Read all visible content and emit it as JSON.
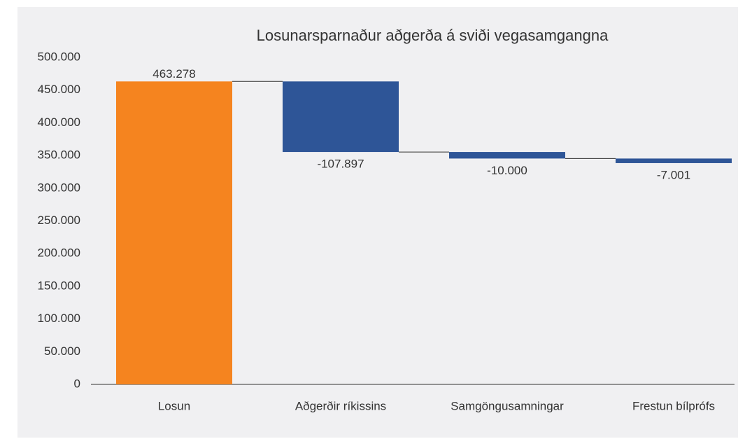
{
  "chart_data": {
    "type": "waterfall",
    "title": "Losunarsparnaður aðgerða á sviði vegasamgangna",
    "categories": [
      "Losun",
      "Aðgerðir ríkissins",
      "Samgöngusamningar",
      "Frestun bílprófs"
    ],
    "values": [
      463278,
      -107897,
      -10000,
      -7001
    ],
    "value_labels": [
      "463.278",
      "-107.897",
      "-10.000",
      "-7.001"
    ],
    "colors": {
      "total": "#f5841f",
      "decrease": "#2e5597"
    },
    "ylim": [
      0,
      500000
    ],
    "yticks": [
      0,
      {
        "value": 50000,
        "label": "50.000"
      },
      {
        "value": 100000,
        "label": "100.000"
      },
      {
        "value": 150000,
        "label": "150.000"
      },
      {
        "value": 200000,
        "label": "200.000"
      },
      {
        "value": 250000,
        "label": "250.000"
      },
      {
        "value": 300000,
        "label": "300.000"
      },
      {
        "value": 350000,
        "label": "350.000"
      },
      {
        "value": 400000,
        "label": "400.000"
      },
      {
        "value": 450000,
        "label": "450.000"
      },
      {
        "value": 500000,
        "label": "500.000"
      }
    ],
    "grid": false
  }
}
